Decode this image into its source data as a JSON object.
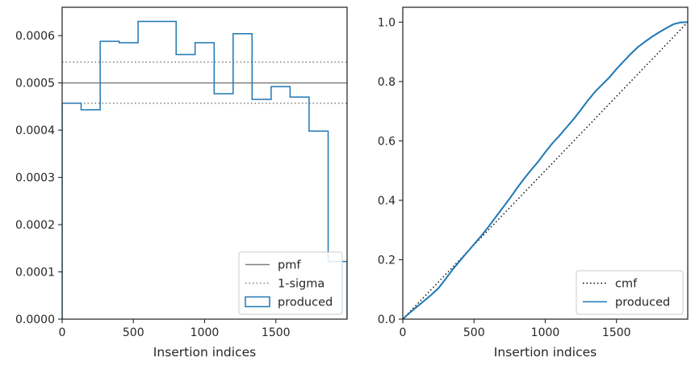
{
  "chart_data": [
    {
      "type": "line",
      "subtype": "histogram-step",
      "xlabel": "Insertion indices",
      "ylabel": "",
      "xlim": [
        0,
        2000
      ],
      "ylim": [
        0,
        0.00066
      ],
      "x_ticks": [
        0,
        500,
        1000,
        1500
      ],
      "x_tick_labels": [
        "0",
        "500",
        "1000",
        "1500"
      ],
      "y_ticks": [
        0,
        0.0001,
        0.0002,
        0.0003,
        0.0004,
        0.0005,
        0.0006
      ],
      "y_tick_labels": [
        "0.0000",
        "0.0001",
        "0.0002",
        "0.0003",
        "0.0004",
        "0.0005",
        "0.0006"
      ],
      "grid": false,
      "legend_position": "lower-right",
      "reference_lines": [
        {
          "name": "pmf",
          "y": 0.0005,
          "style": "solid",
          "color": "#808080"
        },
        {
          "name": "1-sigma",
          "y": 0.000544,
          "style": "dotted",
          "color": "#808080"
        },
        {
          "name": "1-sigma",
          "y": 0.000457,
          "style": "dotted",
          "color": "#808080"
        }
      ],
      "series": [
        {
          "name": "produced",
          "color": "#1f77b4",
          "bin_edges": [
            0,
            133,
            267,
            400,
            533,
            667,
            800,
            933,
            1067,
            1200,
            1333,
            1467,
            1600,
            1733,
            1867,
            2000
          ],
          "values": [
            0.000457,
            0.000443,
            0.000588,
            0.000585,
            0.00063,
            0.00063,
            0.00056,
            0.000585,
            0.000477,
            0.000604,
            0.000465,
            0.000492,
            0.00047,
            0.000398,
            0.000122
          ]
        }
      ],
      "legend": [
        "pmf",
        "1-sigma",
        "produced"
      ]
    },
    {
      "type": "line",
      "xlabel": "Insertion indices",
      "ylabel": "",
      "xlim": [
        0,
        2000
      ],
      "ylim": [
        0,
        1.05
      ],
      "x_ticks": [
        0,
        500,
        1000,
        1500
      ],
      "x_tick_labels": [
        "0",
        "500",
        "1000",
        "1500"
      ],
      "y_ticks": [
        0,
        0.2,
        0.4,
        0.6,
        0.8,
        1.0
      ],
      "y_tick_labels": [
        "0.0",
        "0.2",
        "0.4",
        "0.6",
        "0.8",
        "1.0"
      ],
      "grid": false,
      "legend_position": "lower-right",
      "series": [
        {
          "name": "cmf",
          "color": "#000000",
          "style": "dotted",
          "x": [
            0,
            2000
          ],
          "y": [
            0,
            1.0
          ]
        },
        {
          "name": "produced",
          "color": "#1f77b4",
          "style": "solid",
          "x": [
            0,
            50,
            100,
            150,
            200,
            250,
            300,
            350,
            400,
            450,
            500,
            550,
            600,
            650,
            700,
            750,
            800,
            850,
            900,
            950,
            1000,
            1050,
            1100,
            1150,
            1200,
            1250,
            1300,
            1350,
            1400,
            1450,
            1500,
            1550,
            1600,
            1650,
            1700,
            1750,
            1800,
            1850,
            1900,
            1950,
            2000
          ],
          "y": [
            0,
            0.022,
            0.042,
            0.062,
            0.082,
            0.104,
            0.135,
            0.167,
            0.196,
            0.224,
            0.252,
            0.28,
            0.31,
            0.342,
            0.374,
            0.406,
            0.44,
            0.472,
            0.502,
            0.53,
            0.562,
            0.592,
            0.618,
            0.646,
            0.674,
            0.705,
            0.737,
            0.766,
            0.79,
            0.814,
            0.842,
            0.868,
            0.893,
            0.916,
            0.934,
            0.951,
            0.966,
            0.98,
            0.993,
            0.999,
            1.0
          ]
        }
      ],
      "legend": [
        "cmf",
        "produced"
      ]
    }
  ]
}
